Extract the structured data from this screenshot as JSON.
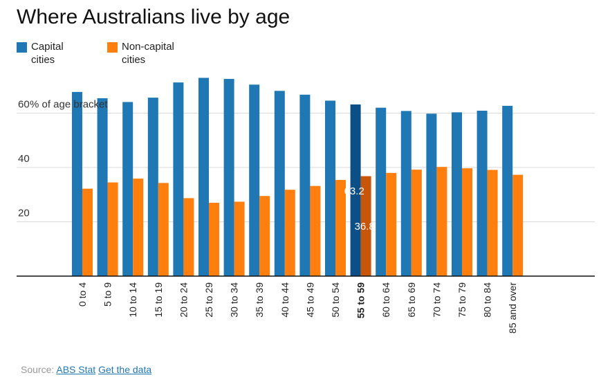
{
  "colors": {
    "capital": "#1f77b4",
    "noncapital": "#ff7f0e",
    "capital_highlight": "#0b4f86",
    "noncapital_highlight": "#c8560a"
  },
  "chart_data": {
    "type": "bar",
    "title": "Where Australians live by age",
    "ylabel": "% of age bracket",
    "ylim": [
      0,
      75
    ],
    "yticks": [
      {
        "value": 60,
        "label": "60"
      },
      {
        "value": 40,
        "label": "40"
      },
      {
        "value": 20,
        "label": "20"
      }
    ],
    "categories": [
      "0 to 4",
      "5 to 9",
      "10 to 14",
      "15 to 19",
      "20 to 24",
      "25 to 29",
      "30 to 34",
      "35 to 39",
      "40 to 44",
      "45 to 49",
      "50 to 54",
      "55 to 59",
      "60 to 64",
      "65 to 69",
      "70 to 74",
      "75 to 79",
      "80 to 84",
      "85 and over"
    ],
    "series": [
      {
        "name": "Capital cities",
        "values": [
          67.8,
          65.5,
          64.1,
          65.7,
          71.3,
          73.0,
          72.6,
          70.5,
          68.2,
          66.8,
          64.6,
          63.2,
          62.0,
          60.8,
          59.8,
          60.3,
          60.9,
          62.7
        ]
      },
      {
        "name": "Non-capital cities",
        "values": [
          32.2,
          34.5,
          35.9,
          34.3,
          28.7,
          27.0,
          27.4,
          29.5,
          31.8,
          33.2,
          35.4,
          36.8,
          38.0,
          39.2,
          40.2,
          39.7,
          39.1,
          37.3
        ]
      }
    ],
    "highlight": {
      "index": 11,
      "labels": [
        "63.2",
        "36.8"
      ]
    }
  },
  "legend": {
    "capital_line1": "Capital",
    "capital_line2": "cities",
    "noncapital_line1": "Non-capital",
    "noncapital_line2": "cities"
  },
  "source": {
    "prefix": "Source:",
    "link1": "ABS Stat",
    "link2": "Get the data"
  }
}
